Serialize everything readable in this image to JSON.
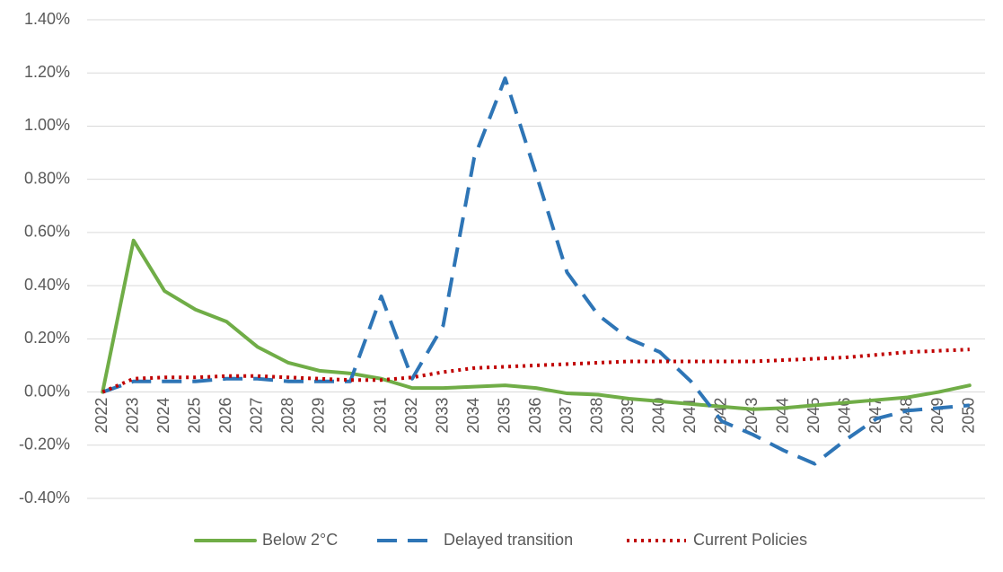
{
  "chart_data": {
    "type": "line",
    "categories": [
      "2022",
      "2023",
      "2024",
      "2025",
      "2026",
      "2027",
      "2028",
      "2029",
      "2030",
      "2031",
      "2032",
      "2033",
      "2034",
      "2035",
      "2036",
      "2037",
      "2038",
      "2039",
      "2040",
      "2041",
      "2042",
      "2043",
      "2044",
      "2045",
      "2046",
      "2047",
      "2048",
      "2049",
      "2050"
    ],
    "series": [
      {
        "name": "Below 2°C",
        "color": "#70ad47",
        "dash": "solid",
        "values": [
          0,
          0.57,
          0.38,
          0.31,
          0.265,
          0.17,
          0.11,
          0.08,
          0.07,
          0.05,
          0.015,
          0.015,
          0.02,
          0.025,
          0.015,
          -0.005,
          -0.01,
          -0.025,
          -0.035,
          -0.045,
          -0.055,
          -0.065,
          -0.06,
          -0.05,
          -0.04,
          -0.03,
          -0.02,
          0,
          0.025
        ]
      },
      {
        "name": "Delayed transition",
        "color": "#2e75b6",
        "dash": "dashed",
        "values": [
          0,
          0.04,
          0.04,
          0.04,
          0.05,
          0.05,
          0.04,
          0.04,
          0.04,
          0.36,
          0.05,
          0.25,
          0.88,
          1.18,
          0.82,
          0.45,
          0.29,
          0.2,
          0.15,
          0.04,
          -0.11,
          -0.16,
          -0.22,
          -0.27,
          -0.18,
          -0.1,
          -0.07,
          -0.06,
          -0.05
        ]
      },
      {
        "name": "Current Policies",
        "color": "#c00000",
        "dash": "dotted",
        "values": [
          0,
          0.05,
          0.055,
          0.055,
          0.06,
          0.06,
          0.055,
          0.05,
          0.045,
          0.045,
          0.055,
          0.075,
          0.09,
          0.095,
          0.1,
          0.105,
          0.11,
          0.115,
          0.115,
          0.115,
          0.115,
          0.115,
          0.12,
          0.125,
          0.13,
          0.14,
          0.15,
          0.155,
          0.16
        ]
      }
    ],
    "ylim": [
      -0.4,
      1.4
    ],
    "yticks": [
      {
        "value": -0.4,
        "label": "-0.40%"
      },
      {
        "value": -0.2,
        "label": "-0.20%"
      },
      {
        "value": 0,
        "label": "0.00%"
      },
      {
        "value": 0.2,
        "label": "0.20%"
      },
      {
        "value": 0.4,
        "label": "0.40%"
      },
      {
        "value": 0.6,
        "label": "0.60%"
      },
      {
        "value": 0.8,
        "label": "0.80%"
      },
      {
        "value": 1.0,
        "label": "1.00%"
      },
      {
        "value": 1.2,
        "label": "1.20%"
      },
      {
        "value": 1.4,
        "label": "1.40%"
      }
    ],
    "grid": true,
    "legend": "bottom"
  }
}
